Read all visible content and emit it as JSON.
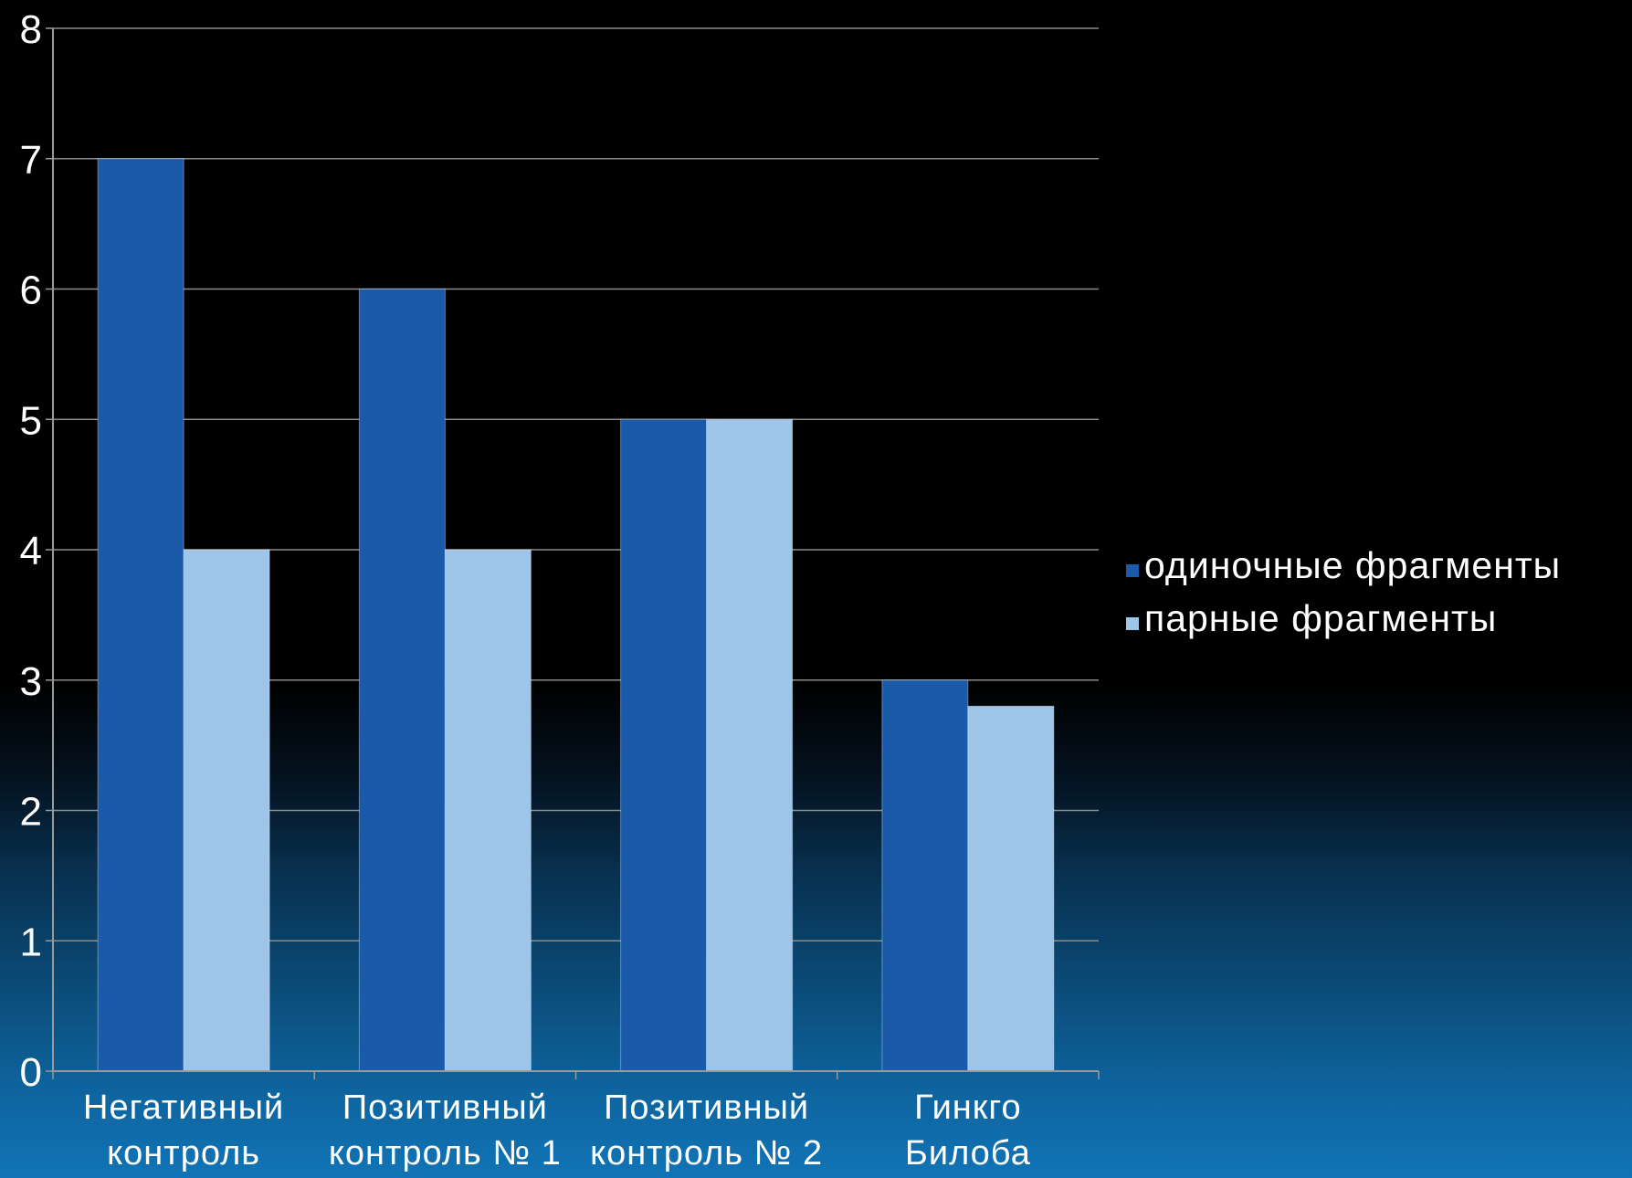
{
  "chart_data": {
    "type": "bar",
    "title": "",
    "xlabel": "",
    "ylabel": "",
    "ylim": [
      0,
      8
    ],
    "yticks": [
      0,
      1,
      2,
      3,
      4,
      5,
      6,
      7,
      8
    ],
    "grid": true,
    "legend_position": "right",
    "categories": [
      [
        "Негативный",
        "контроль"
      ],
      [
        "Позитивный",
        "контроль № 1"
      ],
      [
        "Позитивный",
        "контроль № 2"
      ],
      [
        "Гинкго",
        "Билоба"
      ]
    ],
    "series": [
      {
        "name": "одиночные фрагменты",
        "color": "#1a5aa8",
        "values": [
          7,
          6,
          5,
          3
        ]
      },
      {
        "name": "парные фрагменты",
        "color": "#9ec4e8",
        "values": [
          4,
          4,
          5,
          2.8
        ]
      }
    ]
  },
  "colors": {
    "text": "#ffffff",
    "grid": "#8c8c8c",
    "axis": "#9a9a9a"
  }
}
